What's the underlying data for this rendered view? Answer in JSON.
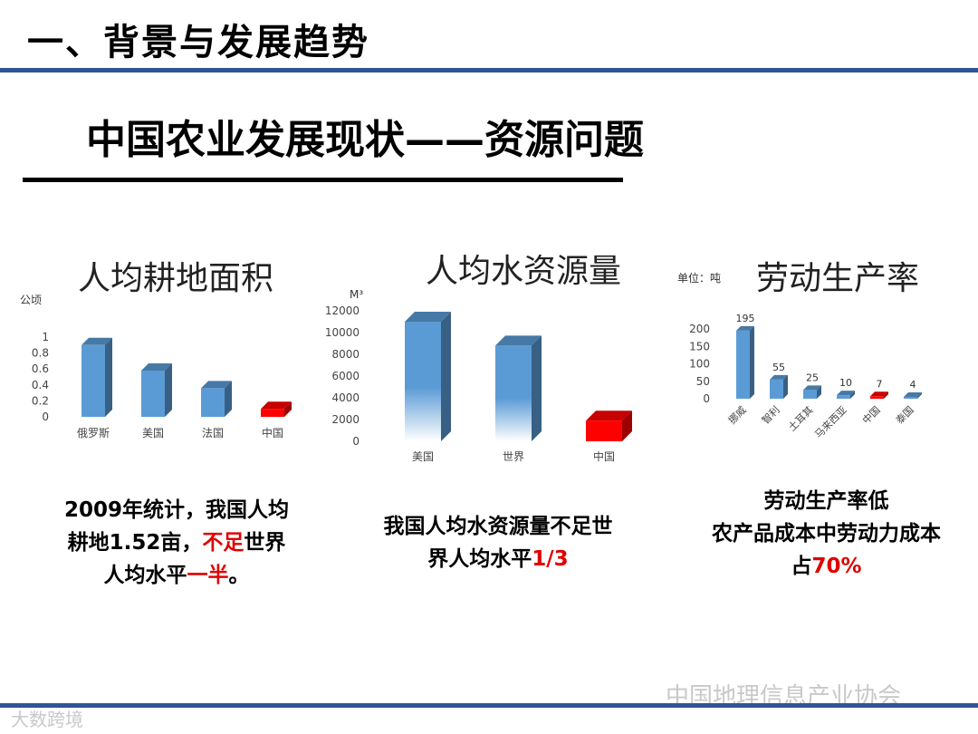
{
  "header": {
    "title": "一、背景与发展趋势"
  },
  "subtitle": "中国农业发展现状——资源问题",
  "panels": [
    {
      "title": "人均耕地面积",
      "unit": "公顷",
      "caption": {
        "line1": "2009年统计，我国人均",
        "line2_a": "耕地1.52亩，",
        "line2_b": "不足",
        "line2_c": "世界",
        "line3_a": "人均水平",
        "line3_b": "一半",
        "line3_c": "。"
      }
    },
    {
      "title": "人均水资源量",
      "unit": "M³",
      "caption": {
        "line1": "我国人均水资源量不足世",
        "line2_a": "界人均水平",
        "line2_b": "1/3"
      }
    },
    {
      "title": "劳动生产率",
      "unit": "单位：吨",
      "caption": {
        "line1": "劳动生产率低",
        "line2": "农产品成本中劳动力成本",
        "line3_a": "占",
        "line3_b": "70%"
      }
    }
  ],
  "chart_data": [
    {
      "type": "bar",
      "title": "人均耕地面积",
      "ylabel": "公顷",
      "categories": [
        "俄罗斯",
        "美国",
        "法国",
        "中国"
      ],
      "values": [
        0.9,
        0.58,
        0.36,
        0.1
      ],
      "yticks": [
        "1",
        "0.8",
        "0.6",
        "0.4",
        "0.2",
        "0"
      ],
      "ylim": [
        0,
        1
      ],
      "colors": [
        "#5b9bd5",
        "#5b9bd5",
        "#5b9bd5",
        "#ff0000"
      ]
    },
    {
      "type": "bar",
      "title": "人均水资源量",
      "ylabel": "M³",
      "categories": [
        "美国",
        "世界",
        "中国"
      ],
      "values": [
        11000,
        8800,
        1900
      ],
      "yticks": [
        "12000",
        "10000",
        "8000",
        "6000",
        "4000",
        "2000",
        "0"
      ],
      "ylim": [
        0,
        12000
      ],
      "colors": [
        "#5b9bd5",
        "#5b9bd5",
        "#ff0000"
      ]
    },
    {
      "type": "bar",
      "title": "劳动生产率",
      "ylabel": "单位：吨",
      "categories": [
        "挪威",
        "智利",
        "土耳其",
        "马来西亚",
        "中国",
        "泰国"
      ],
      "values": [
        195,
        55,
        25,
        10,
        7,
        4
      ],
      "data_labels": [
        "195",
        "55",
        "25",
        "10",
        "7",
        "4"
      ],
      "yticks": [
        "200",
        "150",
        "100",
        "50",
        "0"
      ],
      "ylim": [
        0,
        200
      ],
      "colors": [
        "#5b9bd5",
        "#5b9bd5",
        "#5b9bd5",
        "#5b9bd5",
        "#ff0000",
        "#5b9bd5"
      ]
    }
  ],
  "watermarks": {
    "wechat": "中国地理信息产业协会",
    "source": "大数跨境"
  }
}
